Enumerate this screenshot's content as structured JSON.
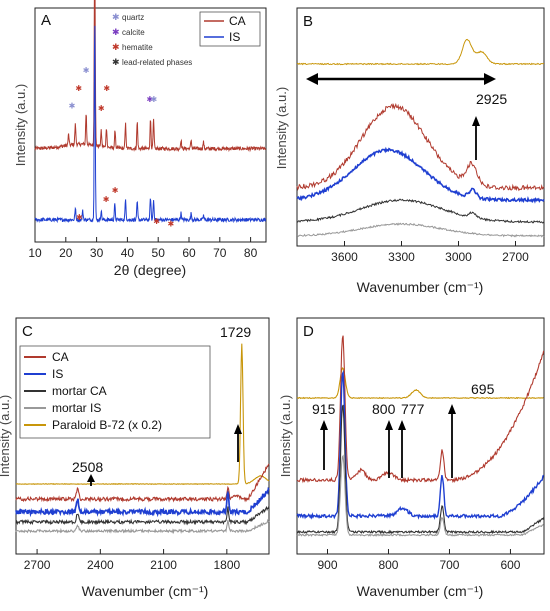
{
  "chart_data": [
    {
      "panel": "A",
      "type": "line",
      "xlabel": "2θ (degree)",
      "ylabel": "Intensity (a.u.)",
      "xlim": [
        10,
        85
      ],
      "xticks": [
        "10",
        "20",
        "30",
        "40",
        "50",
        "60",
        "70",
        "80"
      ],
      "yticks": [],
      "legend": [
        {
          "name": "CA",
          "color": "#b03a2e"
        },
        {
          "name": "IS",
          "color": "#1f3fd1"
        }
      ],
      "phase_legend": [
        {
          "symbol": "*",
          "label": "quartz",
          "color": "#8a8fd0"
        },
        {
          "symbol": "*",
          "label": "calcite",
          "color": "#7a3cc0"
        },
        {
          "symbol": "*",
          "label": "hematite",
          "color": "#c0392b"
        },
        {
          "symbol": "*",
          "label": "lead-related phases",
          "color": "#333333"
        }
      ],
      "series": [
        {
          "name": "CA",
          "color": "#b03a2e",
          "baseline": 0.42,
          "peaks": [
            [
              20.9,
              0.05
            ],
            [
              23.1,
              0.09
            ],
            [
              26.6,
              0.14
            ],
            [
              29.4,
              0.92
            ],
            [
              31.5,
              0.07
            ],
            [
              33.2,
              0.09
            ],
            [
              36.0,
              0.08
            ],
            [
              39.4,
              0.11
            ],
            [
              43.2,
              0.12
            ],
            [
              47.5,
              0.13
            ],
            [
              48.5,
              0.13
            ],
            [
              57.4,
              0.04
            ],
            [
              60.7,
              0.04
            ],
            [
              64.7,
              0.03
            ]
          ]
        },
        {
          "name": "IS",
          "color": "#1f3fd1",
          "baseline": 0.1,
          "peaks": [
            [
              23.1,
              0.05
            ],
            [
              25.5,
              0.04
            ],
            [
              29.4,
              0.9
            ],
            [
              31.5,
              0.04
            ],
            [
              35.9,
              0.07
            ],
            [
              39.4,
              0.09
            ],
            [
              43.2,
              0.08
            ],
            [
              47.5,
              0.1
            ],
            [
              48.5,
              0.09
            ],
            [
              57.4,
              0.03
            ],
            [
              60.7,
              0.03
            ],
            [
              64.7,
              0.02
            ]
          ]
        }
      ],
      "markers": [
        {
          "x": 22.0,
          "y": 0.6,
          "color": "#8a8fd0"
        },
        {
          "x": 24.2,
          "y": 0.68,
          "color": "#c0392b"
        },
        {
          "x": 26.6,
          "y": 0.76,
          "color": "#8a8fd0"
        },
        {
          "x": 29.4,
          "y": 1.39,
          "color": "#7a3cc0"
        },
        {
          "x": 31.5,
          "y": 0.59,
          "color": "#c0392b"
        },
        {
          "x": 33.3,
          "y": 0.68,
          "color": "#c0392b"
        },
        {
          "x": 47.3,
          "y": 0.63,
          "color": "#7a3cc0"
        },
        {
          "x": 48.6,
          "y": 0.63,
          "color": "#8a8fd0"
        },
        {
          "x": 24.4,
          "y": 0.1,
          "color": "#c0392b"
        },
        {
          "x": 33.1,
          "y": 0.18,
          "color": "#c0392b"
        },
        {
          "x": 36.0,
          "y": 0.22,
          "color": "#c0392b"
        },
        {
          "x": 49.5,
          "y": 0.08,
          "color": "#c0392b"
        },
        {
          "x": 54.1,
          "y": 0.07,
          "color": "#c0392b"
        }
      ]
    },
    {
      "panel": "B",
      "type": "line",
      "xlabel": "Wavenumber (cm⁻¹)",
      "ylabel": "Intensity (a.u.)",
      "xlim": [
        3850,
        2550
      ],
      "reversed_x": true,
      "xticks": [
        "3600",
        "3300",
        "3000",
        "2700"
      ],
      "yticks": [],
      "annotations": [
        {
          "text": "2925",
          "x": 2925
        }
      ],
      "series": [
        {
          "name": "Paraloid B-72",
          "color": "#c8960a"
        },
        {
          "name": "CA",
          "color": "#b03a2e"
        },
        {
          "name": "IS",
          "color": "#1f3fd1"
        },
        {
          "name": "mortar CA",
          "color": "#333333"
        },
        {
          "name": "mortar IS",
          "color": "#999999"
        }
      ]
    },
    {
      "panel": "C",
      "type": "line",
      "xlabel": "Wavenumber (cm⁻¹)",
      "ylabel": "Intensity (a.u.)",
      "xlim": [
        2800,
        1600
      ],
      "reversed_x": true,
      "xticks": [
        "2700",
        "2400",
        "2100",
        "1800"
      ],
      "yticks": [],
      "annotations": [
        {
          "text": "1729",
          "x": 1729
        },
        {
          "text": "2508",
          "x": 2508
        }
      ],
      "legend": [
        {
          "name": "CA",
          "color": "#b03a2e"
        },
        {
          "name": "IS",
          "color": "#1f3fd1"
        },
        {
          "name": "mortar CA",
          "color": "#333333"
        },
        {
          "name": "mortar IS",
          "color": "#999999"
        },
        {
          "name": "Paraloid B-72 (x 0.2)",
          "color": "#c8960a"
        }
      ]
    },
    {
      "panel": "D",
      "type": "line",
      "xlabel": "Wavenumber (cm⁻¹)",
      "ylabel": "Intensity (a.u.)",
      "xlim": [
        950,
        545
      ],
      "reversed_x": true,
      "xticks": [
        "900",
        "800",
        "700",
        "600"
      ],
      "yticks": [],
      "annotations": [
        {
          "text": "915",
          "x": 915
        },
        {
          "text": "800",
          "x": 800
        },
        {
          "text": "777",
          "x": 777
        },
        {
          "text": "695",
          "x": 695
        }
      ]
    }
  ]
}
